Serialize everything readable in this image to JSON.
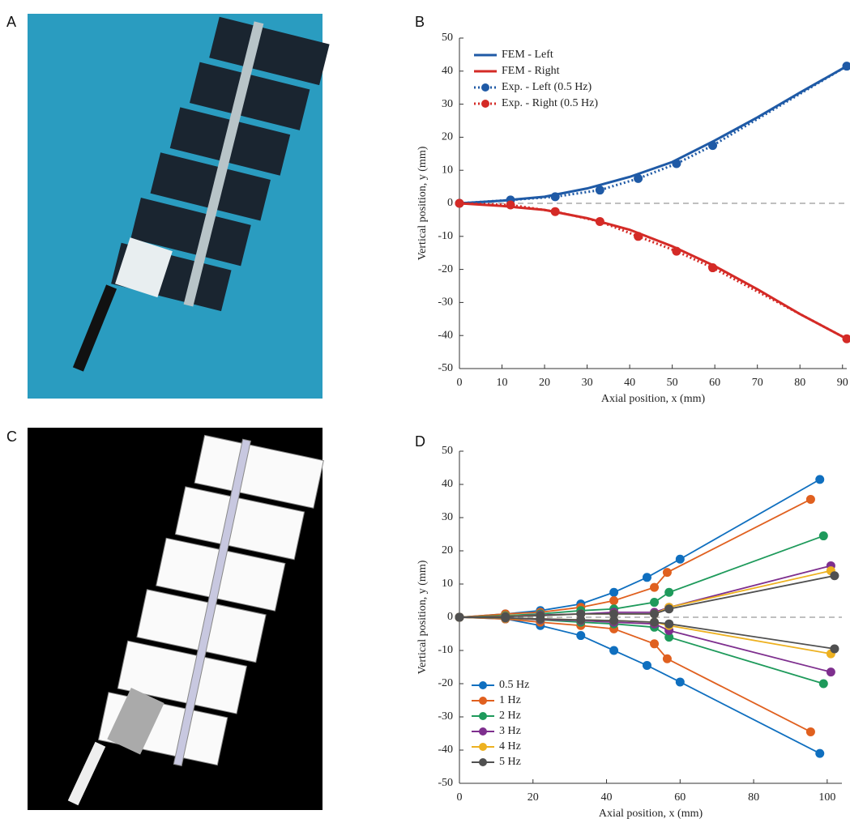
{
  "panel_labels": [
    "A",
    "B",
    "C",
    "D"
  ],
  "chart_data": [
    {
      "type": "line",
      "xlabel": "Axial position, x (mm)",
      "ylabel": "Vertical position, y (mm)",
      "xlim": [
        0,
        91
      ],
      "ylim": [
        -50,
        50
      ],
      "xticks": [
        0,
        10,
        20,
        30,
        40,
        50,
        60,
        70,
        80,
        90
      ],
      "yticks": [
        -50,
        -40,
        -30,
        -20,
        -10,
        0,
        10,
        20,
        30,
        40,
        50
      ],
      "zero_line": true,
      "legend": "upper left",
      "series": [
        {
          "name": "FEM - Left",
          "color": "#1f5aa6",
          "line_style": "solid",
          "marker": false,
          "x": [
            0,
            10,
            20,
            30,
            40,
            50,
            60,
            70,
            80,
            91
          ],
          "values": [
            0,
            0.8,
            2,
            4.5,
            8,
            12.5,
            19,
            26,
            33.5,
            41.5
          ]
        },
        {
          "name": "FEM - Right",
          "color": "#d42a26",
          "line_style": "solid",
          "marker": false,
          "x": [
            0,
            10,
            20,
            30,
            40,
            50,
            60,
            70,
            80,
            91
          ],
          "values": [
            0,
            -0.8,
            -2,
            -4.5,
            -8,
            -13,
            -19,
            -26,
            -33.5,
            -41
          ]
        },
        {
          "name": "Exp. - Left (0.5 Hz)",
          "color": "#1f5aa6",
          "line_style": "dotted",
          "marker": true,
          "x": [
            0,
            12,
            22.5,
            33,
            42,
            51,
            59.5,
            91
          ],
          "values": [
            0,
            1,
            2,
            4,
            7.5,
            12,
            17.5,
            41.5
          ]
        },
        {
          "name": "Exp. - Right (0.5 Hz)",
          "color": "#d42a26",
          "line_style": "dotted",
          "marker": true,
          "x": [
            0,
            12,
            22.5,
            33,
            42,
            51,
            59.5,
            91
          ],
          "values": [
            0,
            -0.5,
            -2.5,
            -5.5,
            -10,
            -14.5,
            -19.5,
            -41
          ]
        }
      ]
    },
    {
      "type": "line",
      "xlabel": "Axial position, x (mm)",
      "ylabel": "Vertical position, y (mm)",
      "xlim": [
        0,
        104
      ],
      "ylim": [
        -50,
        50
      ],
      "xticks": [
        0,
        20,
        40,
        60,
        80,
        100
      ],
      "yticks": [
        -50,
        -40,
        -30,
        -20,
        -10,
        0,
        10,
        20,
        30,
        40,
        50
      ],
      "zero_line": true,
      "legend": "lower left",
      "series": [
        {
          "name": "0.5 Hz",
          "color": "#0f6fbf",
          "x": [
            0,
            12.5,
            22,
            33,
            42,
            51,
            60,
            98
          ],
          "values": [
            0,
            1,
            2,
            4,
            7.5,
            12,
            17.5,
            41.5
          ],
          "values_lower": [
            0,
            -0.5,
            -2.5,
            -5.5,
            -10,
            -14.5,
            -19.5,
            -41
          ]
        },
        {
          "name": "1 Hz",
          "color": "#e0601f",
          "x": [
            0,
            12.5,
            22,
            33,
            42,
            53,
            56.5,
            95.5
          ],
          "values": [
            0,
            1,
            1.5,
            3,
            5,
            9,
            13.5,
            35.5
          ],
          "values_lower": [
            0,
            -0.5,
            -1.5,
            -2.5,
            -3.5,
            -8,
            -12.5,
            -34.5
          ]
        },
        {
          "name": "2 Hz",
          "color": "#1e9a5b",
          "x": [
            0,
            12.5,
            22,
            33,
            42,
            53,
            57,
            99
          ],
          "values": [
            0,
            0.5,
            1,
            2,
            2.5,
            4.5,
            7.5,
            24.5
          ],
          "values_lower": [
            0,
            -0.3,
            -0.8,
            -1.5,
            -2,
            -3,
            -6,
            -20
          ]
        },
        {
          "name": "3 Hz",
          "color": "#7e2f8e",
          "x": [
            0,
            12.5,
            22,
            33,
            42,
            53,
            57,
            101
          ],
          "values": [
            0,
            0.3,
            0.7,
            1,
            1.5,
            1.5,
            3,
            15.5
          ],
          "values_lower": [
            0,
            -0.3,
            -0.7,
            -1,
            -1.5,
            -2,
            -4,
            -16.5
          ]
        },
        {
          "name": "4 Hz",
          "color": "#edb120",
          "x": [
            0,
            12.5,
            22,
            33,
            42,
            53,
            57,
            101
          ],
          "values": [
            0,
            0.3,
            0.5,
            1,
            1,
            1,
            3,
            14
          ],
          "values_lower": [
            0,
            -0.3,
            -0.5,
            -0.8,
            -1,
            -1.5,
            -2.5,
            -11
          ]
        },
        {
          "name": "5 Hz",
          "color": "#505050",
          "x": [
            0,
            12.5,
            22,
            33,
            42,
            53,
            57,
            102
          ],
          "values": [
            0,
            0.2,
            0.5,
            1,
            1,
            1,
            2.5,
            12.5
          ],
          "values_lower": [
            0,
            -0.2,
            -0.5,
            -0.8,
            -1,
            -1.5,
            -2,
            -9.5
          ]
        }
      ]
    }
  ]
}
